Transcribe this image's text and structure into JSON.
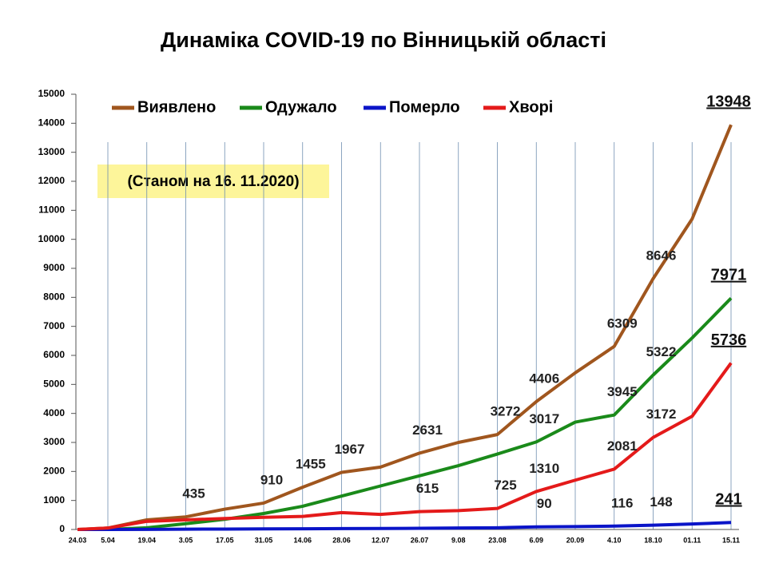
{
  "chart_data": {
    "type": "line",
    "title": "Динаміка COVID-19 по Вінницькій області",
    "subtitle": "(Станом на 16. 11.2020)",
    "categories": [
      "24.03",
      "5.04",
      "19.04",
      "3.05",
      "17.05",
      "31.05",
      "14.06",
      "28.06",
      "12.07",
      "26.07",
      "9.08",
      "23.08",
      "6.09",
      "20.09",
      "4.10",
      "18.10",
      "01.11",
      "15.11"
    ],
    "series": [
      {
        "name": "Виявлено",
        "color": "#a0561e",
        "values": [
          0,
          50,
          330,
          435,
          700,
          910,
          1455,
          1967,
          2150,
          2631,
          3000,
          3272,
          4406,
          5400,
          6309,
          8646,
          10700,
          13948
        ],
        "value_labels": [
          null,
          null,
          null,
          "435",
          null,
          "910",
          "1455",
          "1967",
          null,
          "2631",
          null,
          "3272",
          "4406",
          null,
          "6309",
          "8646",
          null,
          "13948"
        ]
      },
      {
        "name": "Одужало",
        "color": "#1a8a1a",
        "values": [
          0,
          0,
          60,
          200,
          350,
          550,
          800,
          1150,
          1500,
          1850,
          2200,
          2600,
          3017,
          3700,
          3945,
          5322,
          6600,
          7971
        ],
        "value_labels": [
          null,
          null,
          null,
          null,
          null,
          null,
          null,
          null,
          null,
          null,
          null,
          null,
          "3017",
          null,
          "3945",
          "5322",
          null,
          "7971"
        ]
      },
      {
        "name": "Померло",
        "color": "#0a14c8",
        "values": [
          0,
          0,
          5,
          10,
          15,
          20,
          25,
          30,
          35,
          40,
          50,
          60,
          90,
          100,
          116,
          148,
          190,
          241
        ],
        "value_labels": [
          null,
          null,
          null,
          null,
          null,
          null,
          null,
          null,
          null,
          null,
          null,
          null,
          "90",
          null,
          "116",
          "148",
          null,
          "241"
        ]
      },
      {
        "name": "Хворі",
        "color": "#e41a1a",
        "values": [
          0,
          50,
          280,
          330,
          380,
          420,
          450,
          580,
          520,
          615,
          650,
          725,
          1310,
          1700,
          2081,
          3172,
          3900,
          5736
        ],
        "value_labels": [
          null,
          null,
          null,
          null,
          null,
          null,
          null,
          null,
          null,
          "615",
          null,
          "725",
          "1310",
          null,
          "2081",
          "3172",
          null,
          "5736"
        ]
      }
    ],
    "ylim": [
      0,
      15000
    ],
    "yticks": [
      0,
      1000,
      2000,
      3000,
      4000,
      5000,
      6000,
      7000,
      8000,
      9000,
      10000,
      11000,
      12000,
      13000,
      14000,
      15000
    ],
    "grid": true
  }
}
